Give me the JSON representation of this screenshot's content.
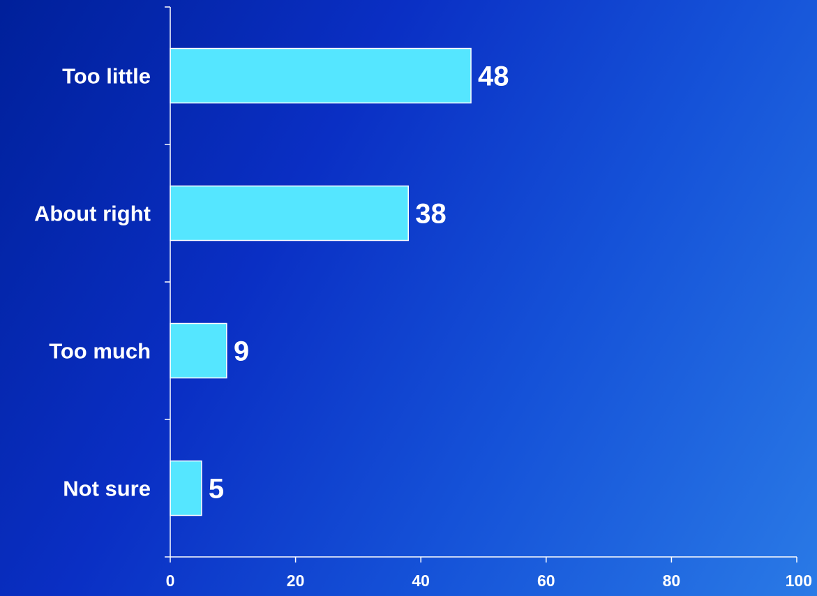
{
  "chart_data": {
    "type": "bar",
    "orientation": "horizontal",
    "categories": [
      "Too little",
      "About right",
      "Too much",
      "Not sure"
    ],
    "values": [
      48,
      38,
      9,
      5
    ],
    "data_labels": [
      "48",
      "38",
      "9",
      "5"
    ],
    "xlim": [
      0,
      100
    ],
    "x_ticks": [
      0,
      20,
      40,
      60,
      80,
      100
    ],
    "x_tick_labels": [
      "0",
      "20",
      "40",
      "60",
      "80",
      "100"
    ],
    "title": "",
    "xlabel": "",
    "ylabel": "",
    "grid": false,
    "legend": "none",
    "colors": {
      "bar_fill": "#55e6ff",
      "bar_stroke": "#ffffff",
      "axis": "#ffffff",
      "text": "#ffffff"
    }
  }
}
